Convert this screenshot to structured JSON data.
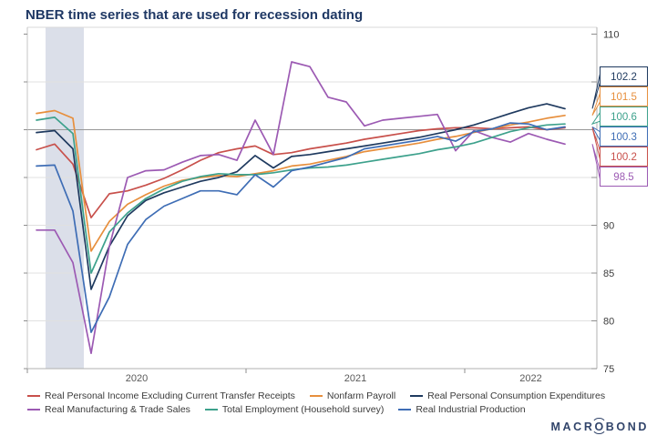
{
  "header": {
    "title": "NBER time series that are used for recession dating"
  },
  "chart_data": {
    "type": "line",
    "x": [
      "2020-01",
      "2020-02",
      "2020-03",
      "2020-04",
      "2020-05",
      "2020-06",
      "2020-07",
      "2020-08",
      "2020-09",
      "2020-10",
      "2020-11",
      "2020-12",
      "2021-01",
      "2021-02",
      "2021-03",
      "2021-04",
      "2021-05",
      "2021-06",
      "2021-07",
      "2021-08",
      "2021-09",
      "2021-10",
      "2021-11",
      "2021-12",
      "2022-01",
      "2022-02",
      "2022-03",
      "2022-04",
      "2022-05",
      "2022-06"
    ],
    "series": [
      {
        "name": "Real Personal Income Excluding Current Transfer Receipts",
        "color": "#c8504b",
        "values": [
          97.9,
          98.5,
          96.4,
          90.8,
          93.3,
          93.6,
          94.2,
          94.9,
          95.8,
          96.8,
          97.6,
          98.0,
          98.3,
          97.4,
          97.6,
          98.0,
          98.3,
          98.6,
          99.0,
          99.3,
          99.6,
          99.9,
          100.1,
          100.2,
          100.2,
          100.1,
          100.2,
          100.3,
          100.0,
          100.2
        ]
      },
      {
        "name": "Nonfarm Payroll",
        "color": "#e78f3d",
        "values": [
          101.7,
          102.0,
          101.2,
          87.3,
          90.4,
          92.2,
          93.2,
          94.1,
          94.7,
          95.0,
          95.2,
          95.1,
          95.4,
          95.7,
          96.2,
          96.4,
          96.8,
          97.2,
          97.7,
          98.0,
          98.3,
          98.6,
          99.0,
          99.3,
          99.7,
          100.1,
          100.5,
          100.8,
          101.2,
          101.5
        ]
      },
      {
        "name": "Real Personal Consumption Expenditures",
        "color": "#1f3a5f",
        "values": [
          99.7,
          99.9,
          98.0,
          83.3,
          87.8,
          91.0,
          92.6,
          93.4,
          94.0,
          94.6,
          95.0,
          95.6,
          97.3,
          96.0,
          97.2,
          97.4,
          97.7,
          98.0,
          98.3,
          98.6,
          98.9,
          99.2,
          99.6,
          100.0,
          100.5,
          101.1,
          101.7,
          102.3,
          102.7,
          102.2
        ]
      },
      {
        "name": "Real Manufacturing & Trade Sales",
        "color": "#9c5ab3",
        "values": [
          89.5,
          89.5,
          86.1,
          76.6,
          87.8,
          95.0,
          95.7,
          95.8,
          96.6,
          97.3,
          97.4,
          96.8,
          101.0,
          97.4,
          107.1,
          106.6,
          103.4,
          102.9,
          100.4,
          101.0,
          101.2,
          101.4,
          101.6,
          97.8,
          99.9,
          99.2,
          98.7,
          99.6,
          99.0,
          98.5
        ]
      },
      {
        "name": "Total Employment (Household survey)",
        "color": "#3da18c",
        "values": [
          101.0,
          101.3,
          99.6,
          85.0,
          89.3,
          91.3,
          92.8,
          93.8,
          94.6,
          95.1,
          95.4,
          95.3,
          95.3,
          95.5,
          95.8,
          96.0,
          96.1,
          96.3,
          96.6,
          96.9,
          97.2,
          97.5,
          97.9,
          98.2,
          98.6,
          99.2,
          99.8,
          100.2,
          100.5,
          100.6
        ]
      },
      {
        "name": "Real Industrial Production",
        "color": "#3e6db5",
        "values": [
          96.2,
          96.3,
          91.5,
          78.8,
          82.5,
          88.0,
          90.6,
          92.0,
          92.8,
          93.6,
          93.6,
          93.2,
          95.3,
          94.0,
          95.7,
          96.1,
          96.6,
          97.1,
          98.0,
          98.3,
          98.6,
          98.9,
          99.3,
          98.8,
          99.8,
          100.1,
          100.7,
          100.6,
          100.0,
          100.3
        ]
      }
    ],
    "ylim": [
      75,
      110
    ],
    "y_ticks": [
      75,
      80,
      85,
      90,
      95,
      100,
      105,
      110
    ],
    "emphasis_gridline": 100,
    "x_tick_labels": [
      "2020",
      "2021",
      "2022"
    ],
    "x_year_start_indices": [
      0,
      12,
      24
    ],
    "recession_band": {
      "from": "2020-02",
      "to": "2020-04",
      "color": "#dbdfe9"
    },
    "end_labels": [
      {
        "value": "102.2",
        "series": 2
      },
      {
        "value": "101.5",
        "series": 1
      },
      {
        "value": "100.6",
        "series": 4
      },
      {
        "value": "100.3",
        "series": 5
      },
      {
        "value": "100.2",
        "series": 0
      },
      {
        "value": "98.5",
        "series": 3
      }
    ],
    "legend_position": "bottom",
    "grid": "horizontal"
  },
  "legend": {
    "rows": [
      [
        {
          "label": "Real Personal Income Excluding Current Transfer Receipts",
          "color": "#c8504b"
        },
        {
          "label": "Nonfarm Payroll",
          "color": "#e78f3d"
        },
        {
          "label": "Real Personal Consumption Expenditures",
          "color": "#1f3a5f"
        }
      ],
      [
        {
          "label": "Real Manufacturing & Trade Sales",
          "color": "#9c5ab3"
        },
        {
          "label": "Total Employment (Household survey)",
          "color": "#3da18c"
        },
        {
          "label": "Real Industrial Production",
          "color": "#3e6db5"
        }
      ]
    ]
  },
  "branding": {
    "logo_pre": "MACR",
    "logo_o": "O",
    "logo_post": "BOND"
  }
}
